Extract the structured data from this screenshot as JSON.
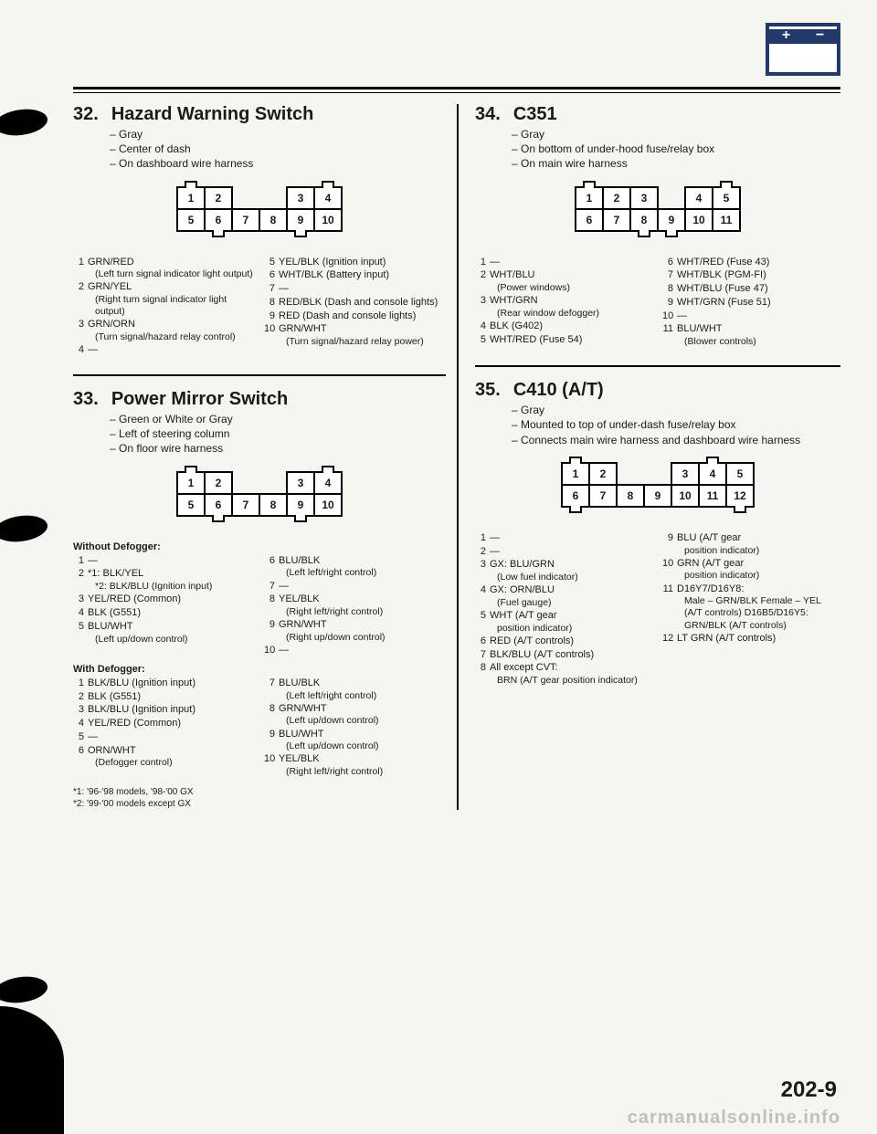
{
  "page_number": "202-9",
  "watermark": "carmanualsonline.info",
  "sec32": {
    "num": "32.",
    "title": "Hazard Warning Switch",
    "notes": [
      "Gray",
      "Center of dash",
      "On dashboard wire harness"
    ],
    "connector": [
      [
        "1",
        "2",
        "",
        "",
        "3",
        "4"
      ],
      [
        "5",
        "6",
        "7",
        "8",
        "9",
        "10"
      ]
    ],
    "pins_left": [
      {
        "n": "1",
        "t": "GRN/RED",
        "d": "(Left turn signal indicator light output)"
      },
      {
        "n": "2",
        "t": "GRN/YEL",
        "d": "(Right turn signal indicator light output)"
      },
      {
        "n": "3",
        "t": "GRN/ORN",
        "d": "(Turn signal/hazard relay control)"
      },
      {
        "n": "4",
        "t": "—",
        "d": ""
      }
    ],
    "pins_right": [
      {
        "n": "5",
        "t": "YEL/BLK (Ignition input)",
        "d": ""
      },
      {
        "n": "6",
        "t": "WHT/BLK (Battery input)",
        "d": ""
      },
      {
        "n": "7",
        "t": "—",
        "d": ""
      },
      {
        "n": "8",
        "t": "RED/BLK (Dash and console lights)",
        "d": ""
      },
      {
        "n": "9",
        "t": "RED (Dash and console lights)",
        "d": ""
      },
      {
        "n": "10",
        "t": "GRN/WHT",
        "d": "(Turn signal/hazard relay power)"
      }
    ]
  },
  "sec33": {
    "num": "33.",
    "title": "Power Mirror Switch",
    "notes": [
      "Green or White or Gray",
      "Left of steering column",
      "On floor wire harness"
    ],
    "connector": [
      [
        "1",
        "2",
        "",
        "",
        "3",
        "4"
      ],
      [
        "5",
        "6",
        "7",
        "8",
        "9",
        "10"
      ]
    ],
    "without_label": "Without Defogger:",
    "without_left": [
      {
        "n": "1",
        "t": "—",
        "d": ""
      },
      {
        "n": "2",
        "t": "*1: BLK/YEL",
        "d": "*2: BLK/BLU (Ignition input)"
      },
      {
        "n": "3",
        "t": "YEL/RED (Common)",
        "d": ""
      },
      {
        "n": "4",
        "t": "BLK (G551)",
        "d": ""
      },
      {
        "n": "5",
        "t": "BLU/WHT",
        "d": "(Left up/down control)"
      }
    ],
    "without_right": [
      {
        "n": "6",
        "t": "BLU/BLK",
        "d": "(Left left/right control)"
      },
      {
        "n": "7",
        "t": "—",
        "d": ""
      },
      {
        "n": "8",
        "t": "YEL/BLK",
        "d": "(Right left/right control)"
      },
      {
        "n": "9",
        "t": "GRN/WHT",
        "d": "(Right up/down control)"
      },
      {
        "n": "10",
        "t": "—",
        "d": ""
      }
    ],
    "with_label": "With Defogger:",
    "with_left": [
      {
        "n": "1",
        "t": "BLK/BLU (Ignition input)",
        "d": ""
      },
      {
        "n": "2",
        "t": "BLK (G551)",
        "d": ""
      },
      {
        "n": "3",
        "t": "BLK/BLU (Ignition input)",
        "d": ""
      },
      {
        "n": "4",
        "t": "YEL/RED (Common)",
        "d": ""
      },
      {
        "n": "5",
        "t": "—",
        "d": ""
      },
      {
        "n": "6",
        "t": "ORN/WHT",
        "d": "(Defogger control)"
      }
    ],
    "with_right": [
      {
        "n": "7",
        "t": "BLU/BLK",
        "d": "(Left left/right control)"
      },
      {
        "n": "8",
        "t": "GRN/WHT",
        "d": "(Left up/down control)"
      },
      {
        "n": "9",
        "t": "BLU/WHT",
        "d": "(Left up/down control)"
      },
      {
        "n": "10",
        "t": "YEL/BLK",
        "d": "(Right left/right control)"
      }
    ],
    "footnotes": [
      "*1:  '96-'98 models, '98-'00 GX",
      "*2:  '99-'00 models except GX"
    ]
  },
  "sec34": {
    "num": "34.",
    "title": "C351",
    "notes": [
      "Gray",
      "On bottom of under-hood fuse/relay box",
      "On main wire harness"
    ],
    "connector": [
      [
        "1",
        "2",
        "3",
        "",
        "4",
        "5"
      ],
      [
        "6",
        "7",
        "8",
        "9",
        "10",
        "11"
      ]
    ],
    "pins_left": [
      {
        "n": "1",
        "t": "—",
        "d": ""
      },
      {
        "n": "2",
        "t": "WHT/BLU",
        "d": "(Power windows)"
      },
      {
        "n": "3",
        "t": "WHT/GRN",
        "d": "(Rear window defogger)"
      },
      {
        "n": "4",
        "t": "BLK (G402)",
        "d": ""
      },
      {
        "n": "5",
        "t": "WHT/RED (Fuse 54)",
        "d": ""
      }
    ],
    "pins_right": [
      {
        "n": "6",
        "t": "WHT/RED (Fuse 43)",
        "d": ""
      },
      {
        "n": "7",
        "t": "WHT/BLK (PGM-FI)",
        "d": ""
      },
      {
        "n": "8",
        "t": "WHT/BLU (Fuse 47)",
        "d": ""
      },
      {
        "n": "9",
        "t": "WHT/GRN (Fuse 51)",
        "d": ""
      },
      {
        "n": "10",
        "t": "—",
        "d": ""
      },
      {
        "n": "11",
        "t": "BLU/WHT",
        "d": "(Blower controls)"
      }
    ]
  },
  "sec35": {
    "num": "35.",
    "title": "C410 (A/T)",
    "notes": [
      "Gray",
      "Mounted to top of under-dash fuse/relay box",
      "Connects main wire harness and dashboard wire harness"
    ],
    "connector": [
      [
        "1",
        "2",
        "",
        "",
        "3",
        "4",
        "5"
      ],
      [
        "6",
        "7",
        "8",
        "9",
        "10",
        "11",
        "12"
      ]
    ],
    "pins_left": [
      {
        "n": "1",
        "t": "—",
        "d": ""
      },
      {
        "n": "2",
        "t": "—",
        "d": ""
      },
      {
        "n": "3",
        "t": "GX: BLU/GRN",
        "d": "(Low fuel indicator)"
      },
      {
        "n": "4",
        "t": "GX: ORN/BLU",
        "d": "(Fuel gauge)"
      },
      {
        "n": "5",
        "t": "WHT (A/T gear",
        "d": "position indicator)"
      },
      {
        "n": "6",
        "t": "RED (A/T controls)",
        "d": ""
      },
      {
        "n": "7",
        "t": "BLK/BLU (A/T controls)",
        "d": ""
      },
      {
        "n": "8",
        "t": "All except CVT:",
        "d": "BRN (A/T gear position indicator)"
      }
    ],
    "pins_right": [
      {
        "n": "9",
        "t": "BLU (A/T gear",
        "d": "position indicator)"
      },
      {
        "n": "10",
        "t": "GRN (A/T gear",
        "d": "position indicator)"
      },
      {
        "n": "11",
        "t": "D16Y7/D16Y8:",
        "d": "Male – GRN/BLK Female – YEL (A/T controls) D16B5/D16Y5: GRN/BLK (A/T controls)"
      },
      {
        "n": "12",
        "t": "LT GRN (A/T controls)",
        "d": ""
      }
    ]
  }
}
